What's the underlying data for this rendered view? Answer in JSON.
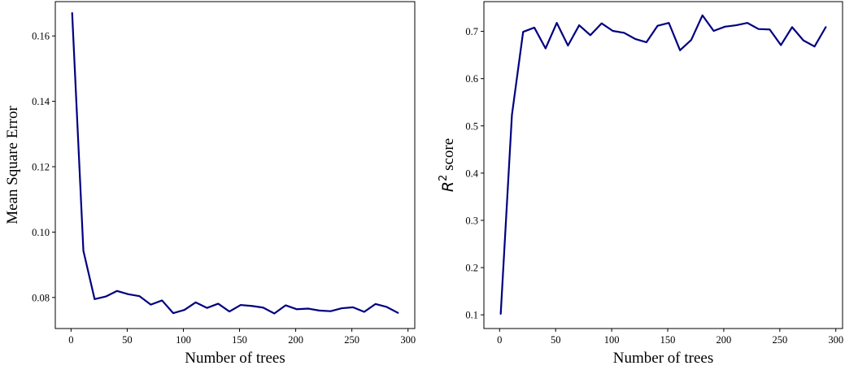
{
  "chart_data": [
    {
      "type": "line",
      "xlabel": "Number of trees",
      "ylabel": "Mean Square Error",
      "xlim": [
        -14,
        306
      ],
      "ylim": [
        0.0705,
        0.1705
      ],
      "xticks": [
        0,
        50,
        100,
        150,
        200,
        250,
        300
      ],
      "xtick_labels": [
        "0",
        "50",
        "100",
        "150",
        "200",
        "250",
        "300"
      ],
      "yticks": [
        0.08,
        0.1,
        0.12,
        0.14,
        0.16
      ],
      "ytick_labels": [
        "0.08",
        "0.10",
        "0.12",
        "0.14",
        "0.16"
      ],
      "grid": false,
      "color": "#000080",
      "series": [
        {
          "x": [
            1,
            11,
            21,
            31,
            41,
            51,
            61,
            71,
            81,
            91,
            101,
            111,
            121,
            131,
            141,
            151,
            161,
            171,
            181,
            191,
            201,
            211,
            221,
            231,
            241,
            251,
            261,
            271,
            281,
            291
          ],
          "values": [
            0.167,
            0.0943,
            0.0795,
            0.0803,
            0.082,
            0.081,
            0.0804,
            0.0778,
            0.0791,
            0.0752,
            0.0762,
            0.0785,
            0.0768,
            0.0781,
            0.0757,
            0.0777,
            0.0774,
            0.0769,
            0.0751,
            0.0776,
            0.0764,
            0.0766,
            0.076,
            0.0758,
            0.0767,
            0.077,
            0.0756,
            0.078,
            0.0771,
            0.0753
          ]
        }
      ]
    },
    {
      "type": "line",
      "xlabel": "Number of trees",
      "ylabel_math": "R",
      "ylabel_sup": "2",
      "ylabel_rest": " score",
      "xlim": [
        -14,
        306
      ],
      "ylim": [
        0.071,
        0.763
      ],
      "xticks": [
        0,
        50,
        100,
        150,
        200,
        250,
        300
      ],
      "xtick_labels": [
        "0",
        "50",
        "100",
        "150",
        "200",
        "250",
        "300"
      ],
      "yticks": [
        0.1,
        0.2,
        0.3,
        0.4,
        0.5,
        0.6,
        0.7
      ],
      "ytick_labels": [
        "0.1",
        "0.2",
        "0.3",
        "0.4",
        "0.5",
        "0.6",
        "0.7"
      ],
      "grid": false,
      "color": "#000080",
      "series": [
        {
          "x": [
            1,
            11,
            21,
            31,
            41,
            51,
            61,
            71,
            81,
            91,
            101,
            111,
            121,
            131,
            141,
            151,
            161,
            171,
            181,
            191,
            201,
            211,
            221,
            231,
            241,
            251,
            261,
            271,
            281,
            291
          ],
          "values": [
            0.102,
            0.523,
            0.699,
            0.708,
            0.664,
            0.718,
            0.67,
            0.713,
            0.692,
            0.717,
            0.701,
            0.697,
            0.684,
            0.677,
            0.712,
            0.718,
            0.66,
            0.682,
            0.734,
            0.701,
            0.71,
            0.713,
            0.718,
            0.705,
            0.704,
            0.671,
            0.709,
            0.681,
            0.668,
            0.709
          ]
        }
      ]
    }
  ]
}
